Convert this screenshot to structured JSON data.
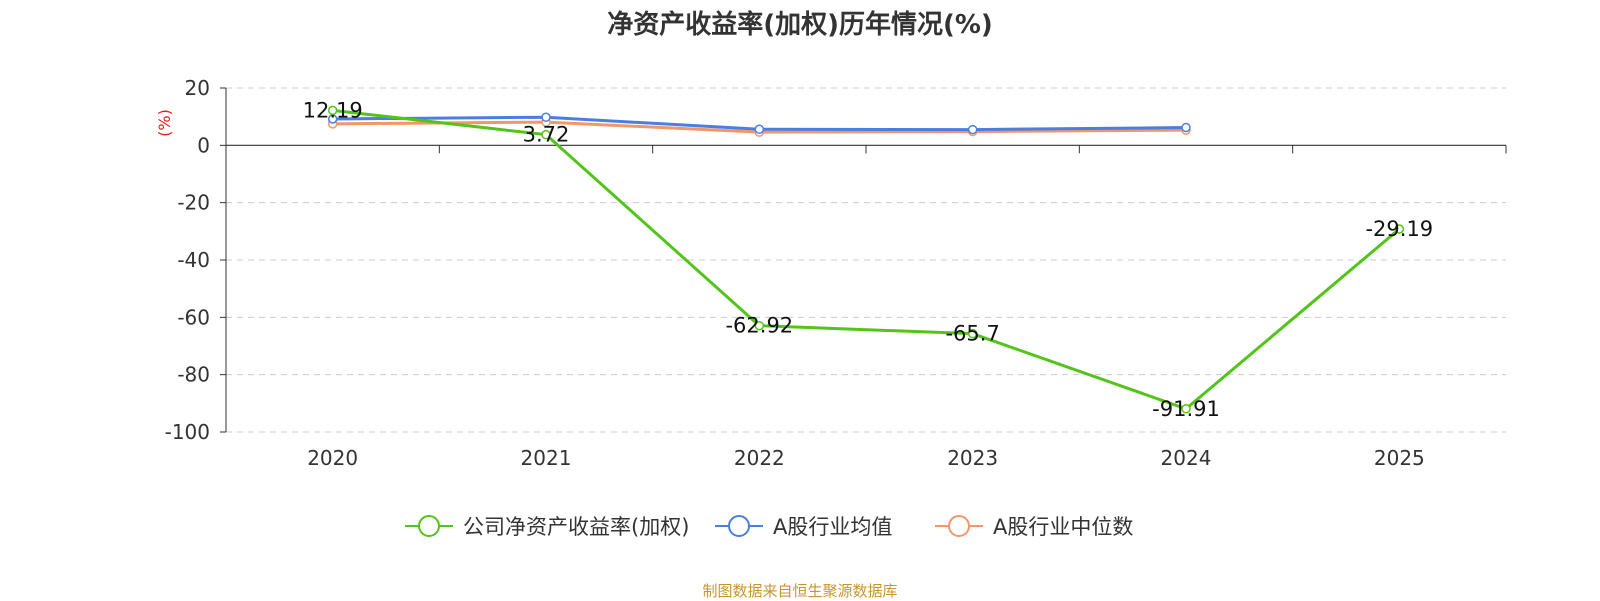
{
  "chart_data": {
    "type": "line",
    "title": "净资产收益率(加权)历年情况(%)",
    "ylabel": "(%)",
    "xlabel": "",
    "categories": [
      "2020",
      "2021",
      "2022",
      "2023",
      "2024",
      "2025"
    ],
    "ylim": [
      -100,
      20
    ],
    "yticks": [
      20,
      0,
      -20,
      -40,
      -60,
      -80,
      -100
    ],
    "grid": true,
    "legend_position": "bottom-center",
    "series": [
      {
        "name": "公司净资产收益率(加权)",
        "color": "#52c41a",
        "values": [
          12.19,
          3.72,
          -62.92,
          -65.7,
          -91.91,
          -29.19
        ],
        "data_labels": [
          "12.19",
          "3.72",
          "-62.92",
          "-65.7",
          "-91.91",
          "-29.19"
        ]
      },
      {
        "name": "A股行业均值",
        "color": "#4a7fe0",
        "values": [
          9.2,
          9.8,
          5.6,
          5.5,
          6.2,
          null
        ]
      },
      {
        "name": "A股行业中位数",
        "color": "#f4956a",
        "values": [
          7.5,
          8.1,
          4.6,
          4.8,
          5.3,
          null
        ]
      }
    ]
  },
  "source": "制图数据来自恒生聚源数据库"
}
